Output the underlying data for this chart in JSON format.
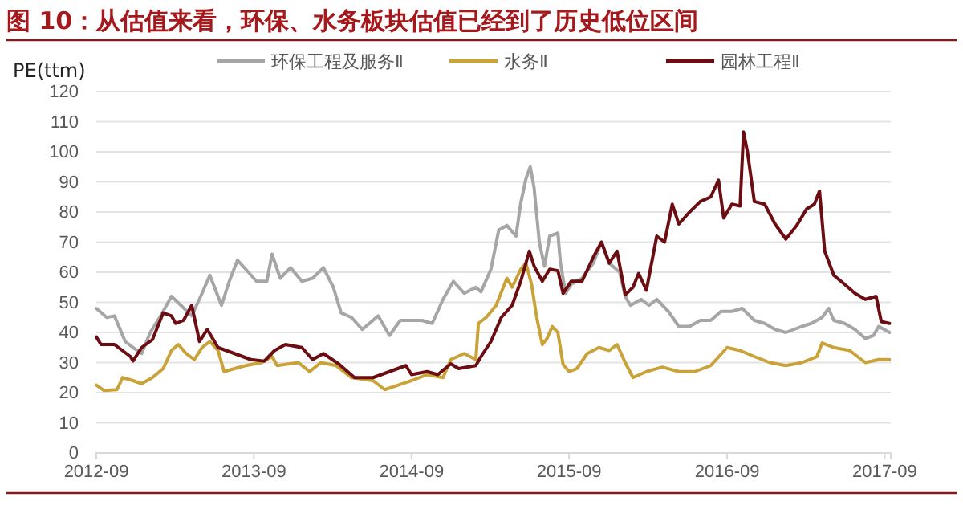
{
  "chart_data": {
    "type": "line",
    "title": "图 10：从估值来看，环保、水务板块估值已经到了历史低位区间",
    "ylabel": "PE(ttm)",
    "xlim": [
      "2012-09-01",
      "2017-09-15"
    ],
    "xticks": [
      {
        "value": "2012-09-01",
        "label": "2012-09"
      },
      {
        "value": "2013-09-01",
        "label": "2013-09"
      },
      {
        "value": "2014-09-01",
        "label": "2014-09"
      },
      {
        "value": "2015-09-01",
        "label": "2015-09"
      },
      {
        "value": "2016-09-01",
        "label": "2016-09"
      },
      {
        "value": "2017-09-01",
        "label": "2017-09"
      }
    ],
    "ylim": [
      0,
      120
    ],
    "yticks": [
      0,
      10,
      20,
      30,
      40,
      50,
      60,
      70,
      80,
      90,
      100,
      110,
      120
    ],
    "grid": "y",
    "legend": "top",
    "marker": "none",
    "line_style": "solid",
    "series": [
      {
        "name": "环保工程及服务Ⅱ",
        "color": "#a6a6a6",
        "x": [
          "2012-09-01",
          "2012-09-25",
          "2012-10-13",
          "2012-11-07",
          "2012-11-25",
          "2012-12-15",
          "2013-01-04",
          "2013-01-28",
          "2013-02-22",
          "2013-03-16",
          "2013-04-10",
          "2013-05-04",
          "2013-05-22",
          "2013-06-18",
          "2013-07-06",
          "2013-07-25",
          "2013-08-13",
          "2013-09-07",
          "2013-10-01",
          "2013-10-13",
          "2013-11-01",
          "2013-11-25",
          "2013-12-21",
          "2014-01-15",
          "2014-02-09",
          "2014-03-04",
          "2014-03-22",
          "2014-04-15",
          "2014-05-10",
          "2014-06-16",
          "2014-07-12",
          "2014-08-06",
          "2014-09-25",
          "2014-10-19",
          "2014-11-13",
          "2014-12-07",
          "2015-01-01",
          "2015-01-28",
          "2015-02-09",
          "2015-03-04",
          "2015-03-22",
          "2015-04-10",
          "2015-05-01",
          "2015-05-12",
          "2015-05-24",
          "2015-06-03",
          "2015-06-12",
          "2015-06-24",
          "2015-07-06",
          "2015-07-18",
          "2015-08-06",
          "2015-08-12",
          "2015-08-24",
          "2015-09-06",
          "2015-10-01",
          "2015-10-27",
          "2015-11-15",
          "2015-12-03",
          "2015-12-27",
          "2016-01-09",
          "2016-01-21",
          "2016-02-15",
          "2016-03-04",
          "2016-03-22",
          "2016-04-18",
          "2016-05-12",
          "2016-06-06",
          "2016-07-01",
          "2016-07-25",
          "2016-08-18",
          "2016-09-12",
          "2016-10-06",
          "2016-11-03",
          "2016-11-27",
          "2016-12-21",
          "2017-01-15",
          "2017-02-21",
          "2017-03-15",
          "2017-04-09",
          "2017-04-24",
          "2017-05-06",
          "2017-05-31",
          "2017-06-24",
          "2017-07-18",
          "2017-08-06",
          "2017-08-18",
          "2017-09-12"
        ],
        "values": [
          48,
          45,
          45.5,
          37,
          35,
          33,
          40,
          45.5,
          52,
          49,
          45.5,
          53,
          59,
          49,
          57,
          64,
          61,
          57,
          57,
          66,
          58,
          61.5,
          57,
          58,
          61.5,
          55,
          46.5,
          45,
          41,
          45.5,
          39,
          44,
          44,
          43,
          51,
          57,
          53,
          55,
          53.5,
          61,
          74,
          75.5,
          72,
          83,
          91,
          95,
          88,
          70,
          62,
          72,
          73,
          63,
          53,
          56,
          58,
          63,
          70,
          63,
          60,
          52,
          49,
          51,
          49,
          51,
          47,
          42,
          42,
          44,
          44,
          47,
          47,
          48,
          44,
          43,
          41,
          40,
          42,
          43,
          45,
          48,
          44,
          43,
          41,
          38,
          39,
          42,
          40
        ]
      },
      {
        "name": "水务Ⅱ",
        "color": "#c9a33a",
        "x": [
          "2012-09-01",
          "2012-09-19",
          "2012-10-19",
          "2012-11-01",
          "2012-11-25",
          "2012-12-15",
          "2013-01-09",
          "2013-02-03",
          "2013-02-22",
          "2013-03-10",
          "2013-03-28",
          "2013-04-16",
          "2013-05-04",
          "2013-05-22",
          "2013-06-10",
          "2013-06-24",
          "2013-07-18",
          "2013-08-13",
          "2013-09-19",
          "2013-10-13",
          "2013-10-25",
          "2013-12-13",
          "2014-01-08",
          "2014-02-03",
          "2014-03-10",
          "2014-04-15",
          "2014-06-04",
          "2014-07-01",
          "2014-08-01",
          "2014-09-01",
          "2014-10-07",
          "2014-11-13",
          "2014-12-01",
          "2015-01-01",
          "2015-01-28",
          "2015-02-03",
          "2015-02-21",
          "2015-03-16",
          "2015-04-10",
          "2015-04-22",
          "2015-05-12",
          "2015-05-24",
          "2015-06-06",
          "2015-06-18",
          "2015-07-01",
          "2015-07-12",
          "2015-07-24",
          "2015-08-06",
          "2015-08-18",
          "2015-09-01",
          "2015-09-19",
          "2015-10-13",
          "2015-11-09",
          "2015-12-03",
          "2015-12-21",
          "2016-01-09",
          "2016-01-27",
          "2016-02-27",
          "2016-04-04",
          "2016-05-12",
          "2016-06-18",
          "2016-07-25",
          "2016-09-01",
          "2016-10-01",
          "2016-11-03",
          "2016-12-09",
          "2017-01-15",
          "2017-02-21",
          "2017-03-28",
          "2017-04-09",
          "2017-05-06",
          "2017-06-12",
          "2017-07-18",
          "2017-08-18",
          "2017-09-12"
        ],
        "values": [
          22.5,
          20.7,
          21,
          25,
          24,
          23,
          25,
          28,
          34,
          36,
          33,
          31,
          35,
          37,
          34,
          27,
          28,
          29,
          30,
          32,
          29,
          30,
          27,
          30,
          29,
          25,
          24,
          21,
          22.5,
          24,
          26,
          25,
          31,
          33,
          31,
          43,
          45,
          49,
          58,
          55,
          61,
          63,
          56,
          45,
          36,
          38,
          42,
          40,
          29.4,
          27,
          28,
          33,
          35,
          34,
          36,
          30,
          25,
          27,
          28.5,
          27,
          27,
          29,
          35,
          34,
          32,
          30,
          29,
          30,
          32,
          36.5,
          35,
          34,
          30,
          31,
          31
        ]
      },
      {
        "name": "园林工程Ⅱ",
        "color": "#6b0d12",
        "x": [
          "2012-09-01",
          "2012-09-12",
          "2012-10-13",
          "2012-11-19",
          "2012-11-25",
          "2012-12-15",
          "2013-01-09",
          "2013-02-03",
          "2013-02-22",
          "2013-03-04",
          "2013-03-22",
          "2013-04-10",
          "2013-04-28",
          "2013-05-16",
          "2013-06-10",
          "2013-07-18",
          "2013-08-25",
          "2013-09-25",
          "2013-10-19",
          "2013-11-13",
          "2013-12-21",
          "2014-01-15",
          "2014-02-09",
          "2014-03-16",
          "2014-04-22",
          "2014-06-04",
          "2014-07-12",
          "2014-08-19",
          "2014-09-01",
          "2014-10-07",
          "2014-11-01",
          "2014-12-01",
          "2014-12-19",
          "2015-01-28",
          "2015-02-09",
          "2015-03-04",
          "2015-03-28",
          "2015-04-22",
          "2015-05-12",
          "2015-06-01",
          "2015-06-12",
          "2015-07-01",
          "2015-07-18",
          "2015-08-06",
          "2015-08-18",
          "2015-09-06",
          "2015-10-01",
          "2015-10-27",
          "2015-11-15",
          "2015-12-03",
          "2015-12-21",
          "2016-01-09",
          "2016-01-27",
          "2016-02-09",
          "2016-02-27",
          "2016-03-22",
          "2016-04-09",
          "2016-04-27",
          "2016-05-12",
          "2016-06-06",
          "2016-07-01",
          "2016-07-25",
          "2016-08-12",
          "2016-08-24",
          "2016-09-12",
          "2016-10-01",
          "2016-10-09",
          "2016-10-18",
          "2016-11-03",
          "2016-11-27",
          "2016-12-21",
          "2017-01-15",
          "2017-02-09",
          "2017-03-04",
          "2017-03-22",
          "2017-04-03",
          "2017-04-15",
          "2017-05-06",
          "2017-05-31",
          "2017-06-24",
          "2017-07-18",
          "2017-08-12",
          "2017-08-24",
          "2017-09-12"
        ],
        "values": [
          38.5,
          36,
          36,
          32,
          30.5,
          35,
          37.6,
          46.5,
          45.5,
          43,
          44,
          49,
          37,
          41,
          35,
          33,
          31,
          30.5,
          34,
          36,
          35,
          31,
          33,
          29.6,
          25,
          25,
          27,
          29,
          26,
          27,
          26,
          29.6,
          28,
          29,
          32,
          37,
          45,
          49,
          57,
          67,
          62,
          57,
          61,
          60.5,
          53,
          57,
          57,
          65,
          70,
          63,
          67,
          52.5,
          55,
          59.6,
          54,
          72,
          70,
          82.6,
          76,
          80,
          83.5,
          85,
          90.6,
          78,
          82.6,
          82,
          106.6,
          100,
          83.5,
          82.6,
          76,
          71,
          75.5,
          81,
          82.6,
          87,
          67,
          59,
          56,
          53,
          51,
          52,
          43.6,
          43
        ]
      }
    ]
  }
}
